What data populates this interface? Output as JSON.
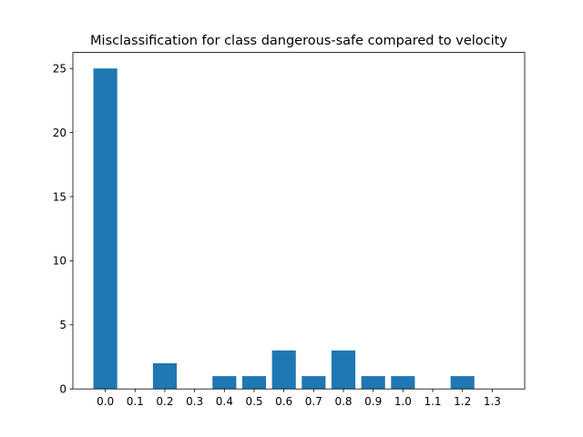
{
  "chart_data": {
    "type": "bar",
    "title": "Misclassification for class dangerous-safe compared to velocity",
    "xlabel": "",
    "ylabel": "",
    "categories": [
      "0.0",
      "0.1",
      "0.2",
      "0.3",
      "0.4",
      "0.5",
      "0.6",
      "0.7",
      "0.8",
      "0.9",
      "1.0",
      "1.1",
      "1.2",
      "1.3"
    ],
    "values": [
      25,
      0,
      2,
      0,
      1,
      1,
      3,
      1,
      3,
      1,
      1,
      0,
      1,
      0
    ],
    "yticks": [
      "0",
      "5",
      "10",
      "15",
      "20",
      "25"
    ],
    "ylim": [
      0,
      26.25
    ],
    "grid": false,
    "legend": "none",
    "bar_color": "#1f77b4"
  }
}
